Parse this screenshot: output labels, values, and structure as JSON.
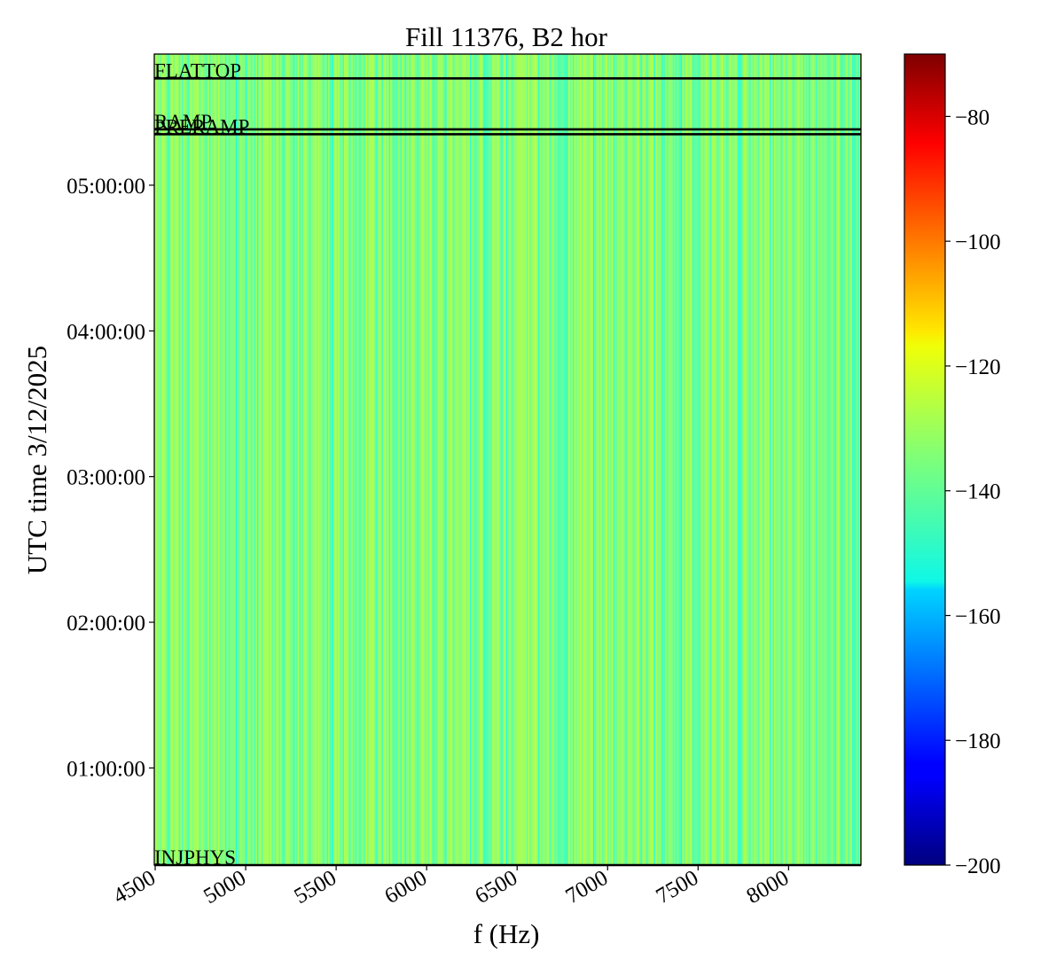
{
  "chart_data": {
    "type": "heatmap",
    "title": "Fill 11376, B2 hor",
    "xlabel": "f (Hz)",
    "ylabel": "UTC time 3/12/2025",
    "xlim": [
      4495,
      8400
    ],
    "ylim": [
      "00:20:00",
      "05:54:00"
    ],
    "x_ticks": [
      4500,
      5000,
      5500,
      6000,
      6500,
      7000,
      7500,
      8000
    ],
    "x_tick_labels": [
      "4500",
      "5000",
      "5500",
      "6000",
      "6500",
      "7000",
      "7500",
      "8000"
    ],
    "y_ticks": [
      "01:00:00",
      "02:00:00",
      "03:00:00",
      "04:00:00",
      "05:00:00"
    ],
    "y_tick_labels": [
      "01:00:00",
      "02:00:00",
      "03:00:00",
      "04:00:00",
      "05:00:00"
    ],
    "colormap": "jet",
    "clim": [
      -200,
      -70
    ],
    "colorbar_ticks": [
      -200,
      -180,
      -160,
      -140,
      -120,
      -100,
      -80
    ],
    "colorbar_tick_labels": [
      "−200",
      "−180",
      "−160",
      "−140",
      "−120",
      "−100",
      "−80"
    ],
    "typical_value_range": [
      -145,
      -128
    ],
    "grid": false,
    "phases": [
      {
        "label": "INJPHYS",
        "time": "00:20:00"
      },
      {
        "label": "PRERAMP",
        "time": "05:21:00"
      },
      {
        "label": "RAMP",
        "time": "05:23:00"
      },
      {
        "label": "FLATTOP",
        "time": "05:44:00"
      }
    ],
    "distinct_columns_hz": [
      4945,
      5475,
      6440,
      6920,
      7405
    ]
  }
}
